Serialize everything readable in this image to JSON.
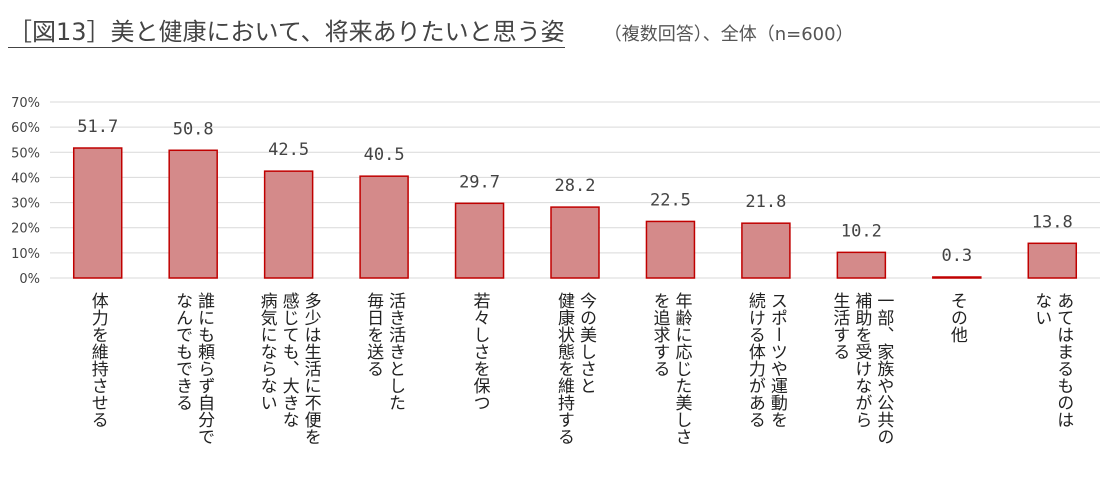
{
  "header": {
    "title": "［図13］美と健康において、将来ありたいと思う姿",
    "subtitle": "（複数回答）、全体（n=600）"
  },
  "chart_data": {
    "type": "bar",
    "title": "［図13］美と健康において、将来ありたいと思う姿",
    "subtitle": "（複数回答）、全体（n=600）",
    "xlabel": "",
    "ylabel": "",
    "ylim": [
      0,
      70
    ],
    "yticks": [
      0,
      10,
      20,
      30,
      40,
      50,
      60,
      70
    ],
    "ytick_labels": [
      "0%",
      "10%",
      "20%",
      "30%",
      "40%",
      "50%",
      "60%",
      "70%"
    ],
    "grid": true,
    "categories": [
      [
        "体力を維持させる"
      ],
      [
        "誰にも頼らず自分で",
        "なんでもできる"
      ],
      [
        "多少は生活に不便を",
        "感じても、大きな",
        "病気にならない"
      ],
      [
        "活き活きとした",
        "毎日を送る"
      ],
      [
        "若々しさを保つ"
      ],
      [
        "今の美しさと",
        "健康状態を維持する"
      ],
      [
        "年齢に応じた美しさ",
        "を追求する"
      ],
      [
        "スポーツや運動を",
        "続ける体力がある"
      ],
      [
        "一部、家族や公共の",
        "補助を受けながら",
        "生活する"
      ],
      [
        "その他"
      ],
      [
        "あてはまるものは",
        "ない"
      ]
    ],
    "values": [
      51.7,
      50.8,
      42.5,
      40.5,
      29.7,
      28.2,
      22.5,
      21.8,
      10.2,
      0.3,
      13.8
    ],
    "value_labels": [
      "51.7",
      "50.8",
      "42.5",
      "40.5",
      "29.7",
      "28.2",
      "22.5",
      "21.8",
      "10.2",
      "0.3",
      "13.8"
    ],
    "bar_fill": "#d48a8a",
    "bar_stroke": "#c00000",
    "grid_color": "#d9d9d9"
  }
}
